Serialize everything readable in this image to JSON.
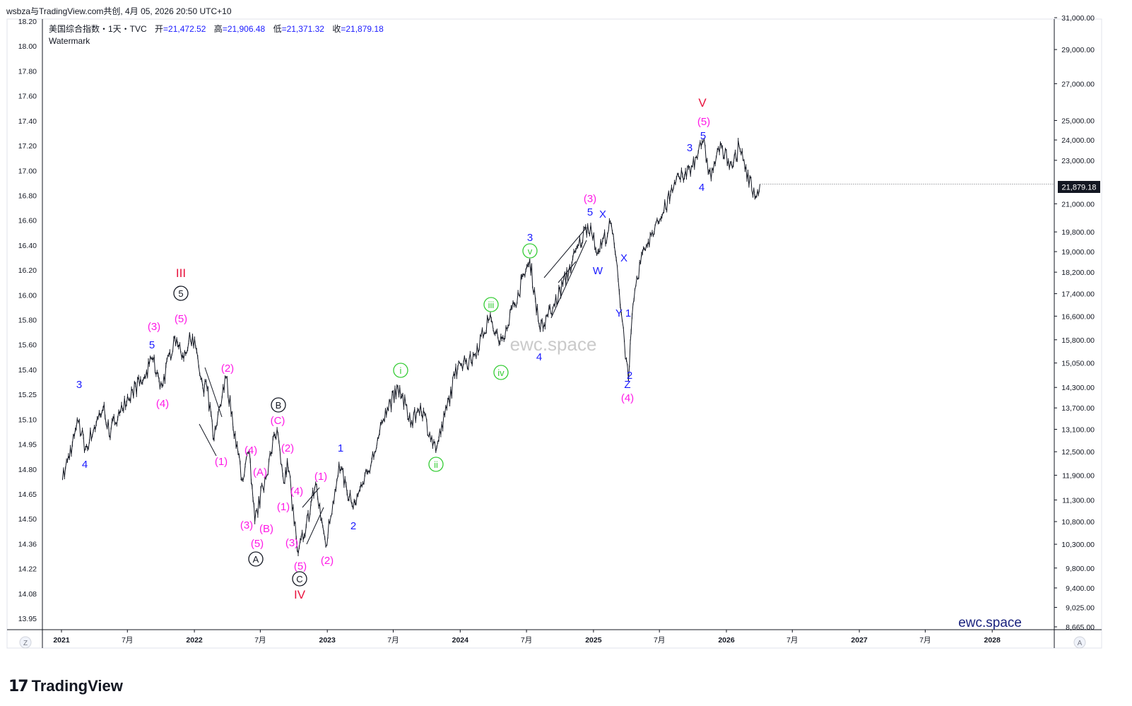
{
  "caption": "wsbza与TradingView.com共创, 4月 05, 2026 20:50 UTC+10",
  "header": {
    "symbol_line": "美国综合指数・1天・TVC",
    "ohlc": [
      {
        "k": "开",
        "v": "=21,472.52"
      },
      {
        "k": "高",
        "v": "=21,906.48"
      },
      {
        "k": "低",
        "v": "=21,371.32"
      },
      {
        "k": "收",
        "v": "=21,879.18"
      }
    ],
    "watermark_label": "Watermark"
  },
  "chart_data": {
    "type": "line",
    "left_axis_ticks": [
      "18.20",
      "18.00",
      "17.80",
      "17.60",
      "17.40",
      "17.20",
      "17.00",
      "16.80",
      "16.60",
      "16.40",
      "16.20",
      "16.00",
      "15.80",
      "15.60",
      "15.40",
      "15.25",
      "15.10",
      "14.95",
      "14.80",
      "14.65",
      "14.50",
      "14.36",
      "14.22",
      "14.08",
      "13.95"
    ],
    "right_axis_ticks": [
      "31,000.00",
      "29,000.00",
      "27,000.00",
      "25,000.00",
      "24,000.00",
      "23,000.00",
      "21,000.00",
      "19,800.00",
      "19,000.00",
      "18,200.00",
      "17,400.00",
      "16,600.00",
      "15,800.00",
      "15,050.00",
      "14,300.00",
      "13,700.00",
      "13,100.00",
      "12,500.00",
      "11,900.00",
      "11,300.00",
      "10,800.00",
      "10,300.00",
      "9,800.00",
      "9,400.00",
      "9,025.00",
      "8,665.00"
    ],
    "y_scale": "log",
    "x_axis_ticks": [
      "2021",
      "7月",
      "2022",
      "7月",
      "2023",
      "7月",
      "2024",
      "7月",
      "2025",
      "7月",
      "2026",
      "7月",
      "2027",
      "7月",
      "2028"
    ],
    "last_price_label": "21,879.18",
    "series": [
      {
        "values": [
          [
            "2021-01-04",
            11800
          ],
          [
            "2021-02-16",
            13300
          ],
          [
            "2021-03-08",
            12600
          ],
          [
            "2021-04-28",
            13800
          ],
          [
            "2021-05-12",
            12950
          ],
          [
            "2021-06-15",
            13800
          ],
          [
            "2021-07-15",
            14200
          ],
          [
            "2021-08-20",
            14600
          ],
          [
            "2021-09-07",
            15200
          ],
          [
            "2021-10-04",
            14350
          ],
          [
            "2021-11-08",
            15900
          ],
          [
            "2021-11-30",
            15300
          ],
          [
            "2021-12-27",
            15950
          ],
          [
            "2022-01-27",
            14100
          ],
          [
            "2022-02-02",
            14500
          ],
          [
            "2022-02-24",
            12800
          ],
          [
            "2022-03-29",
            14600
          ],
          [
            "2022-05-12",
            11800
          ],
          [
            "2022-06-01",
            12500
          ],
          [
            "2022-06-16",
            10800
          ],
          [
            "2022-07-08",
            11600
          ],
          [
            "2022-08-16",
            13100
          ],
          [
            "2022-09-06",
            11700
          ],
          [
            "2022-09-13",
            12300
          ],
          [
            "2022-10-13",
            10100
          ],
          [
            "2022-11-04",
            10700
          ],
          [
            "2022-11-30",
            11700
          ],
          [
            "2022-12-28",
            10250
          ],
          [
            "2023-02-02",
            12200
          ],
          [
            "2023-03-13",
            11100
          ],
          [
            "2023-04-25",
            12000
          ],
          [
            "2023-06-15",
            13700
          ],
          [
            "2023-07-19",
            14300
          ],
          [
            "2023-08-18",
            13200
          ],
          [
            "2023-09-14",
            13800
          ],
          [
            "2023-10-26",
            12500
          ],
          [
            "2023-12-28",
            15100
          ],
          [
            "2024-01-31",
            15100
          ],
          [
            "2024-03-21",
            16500
          ],
          [
            "2024-04-19",
            15700
          ],
          [
            "2024-05-28",
            17000
          ],
          [
            "2024-07-10",
            18700
          ],
          [
            "2024-08-05",
            16300
          ],
          [
            "2024-09-06",
            16700
          ],
          [
            "2024-12-16",
            20100
          ],
          [
            "2025-01-13",
            19000
          ],
          [
            "2025-02-19",
            20100
          ],
          [
            "2025-03-10",
            17900
          ],
          [
            "2025-04-07",
            14500
          ],
          [
            "2025-04-17",
            16600
          ],
          [
            "2025-05-13",
            18900
          ],
          [
            "2025-06-30",
            20200
          ],
          [
            "2025-08-14",
            21900
          ],
          [
            "2025-09-30",
            22700
          ],
          [
            "2025-10-29",
            23900
          ],
          [
            "2025-11-20",
            22100
          ],
          [
            "2025-12-10",
            23600
          ],
          [
            "2026-01-20",
            22800
          ],
          [
            "2026-02-05",
            23700
          ],
          [
            "2026-03-20",
            21300
          ],
          [
            "2026-03-30",
            21400
          ],
          [
            "2026-04-03",
            21879
          ]
        ]
      }
    ],
    "wave_labels": [
      {
        "text": "3",
        "color": "#1b1bff"
      },
      {
        "text": "4",
        "color": "#1b1bff"
      },
      {
        "text": "5",
        "color": "#1b1bff"
      },
      {
        "text": "(3)",
        "color": "#ff19e6"
      },
      {
        "text": "(4)",
        "color": "#ff19e6"
      },
      {
        "text": "(5)",
        "color": "#ff19e6"
      },
      {
        "text": "III",
        "color": "#e8123d"
      },
      {
        "text": "5",
        "color": "#131722"
      },
      {
        "text": "(1)",
        "color": "#ff19e6"
      },
      {
        "text": "(2)",
        "color": "#ff19e6"
      },
      {
        "text": "(3)",
        "color": "#ff19e6"
      },
      {
        "text": "(4)",
        "color": "#ff19e6"
      },
      {
        "text": "(5)",
        "color": "#ff19e6"
      },
      {
        "text": "(A)",
        "color": "#ff19e6"
      },
      {
        "text": "(B)",
        "color": "#ff19e6"
      },
      {
        "text": "(C)",
        "color": "#ff19e6"
      },
      {
        "text": "A",
        "color": "#131722"
      },
      {
        "text": "B",
        "color": "#131722"
      },
      {
        "text": "(1)",
        "color": "#ff19e6"
      },
      {
        "text": "(2)",
        "color": "#ff19e6"
      },
      {
        "text": "(3)",
        "color": "#ff19e6"
      },
      {
        "text": "(4)",
        "color": "#ff19e6"
      },
      {
        "text": "(5)",
        "color": "#ff19e6"
      },
      {
        "text": "C",
        "color": "#131722"
      },
      {
        "text": "IV",
        "color": "#e8123d"
      },
      {
        "text": "(1)",
        "color": "#ff19e6"
      },
      {
        "text": "(2)",
        "color": "#ff19e6"
      },
      {
        "text": "1",
        "color": "#1b1bff"
      },
      {
        "text": "2",
        "color": "#1b1bff"
      },
      {
        "text": "i",
        "color": "#33cc33"
      },
      {
        "text": "ii",
        "color": "#33cc33"
      },
      {
        "text": "iii",
        "color": "#33cc33"
      },
      {
        "text": "iv",
        "color": "#33cc33"
      },
      {
        "text": "v",
        "color": "#33cc33"
      },
      {
        "text": "3",
        "color": "#1b1bff"
      },
      {
        "text": "4",
        "color": "#1b1bff"
      },
      {
        "text": "5",
        "color": "#1b1bff"
      },
      {
        "text": "(3)",
        "color": "#ff19e6"
      },
      {
        "text": "X",
        "color": "#1b1bff"
      },
      {
        "text": "W",
        "color": "#1b1bff"
      },
      {
        "text": "X",
        "color": "#1b1bff"
      },
      {
        "text": "Y",
        "color": "#1b1bff"
      },
      {
        "text": "1",
        "color": "#1b1bff"
      },
      {
        "text": "2",
        "color": "#1b1bff"
      },
      {
        "text": "Z",
        "color": "#1b1bff"
      },
      {
        "text": "(4)",
        "color": "#ff19e6"
      },
      {
        "text": "3",
        "color": "#1b1bff"
      },
      {
        "text": "4",
        "color": "#1b1bff"
      },
      {
        "text": "5",
        "color": "#1b1bff"
      },
      {
        "text": "(5)",
        "color": "#ff19e6"
      },
      {
        "text": "V",
        "color": "#e8123d"
      }
    ],
    "watermark_center": "ewc.space",
    "watermark_corner": "ewc.space"
  },
  "axis_buttons": {
    "left": "Z",
    "right": "A"
  },
  "brand": {
    "name": "TradingView"
  },
  "colors": {
    "candle": "#131722",
    "blue_wave": "#1b1bff",
    "magenta_wave": "#ff19e6",
    "red_wave": "#e8123d",
    "green_wave": "#33cc33",
    "price_badge": "#131722",
    "corner_brand": "#1a237e"
  }
}
